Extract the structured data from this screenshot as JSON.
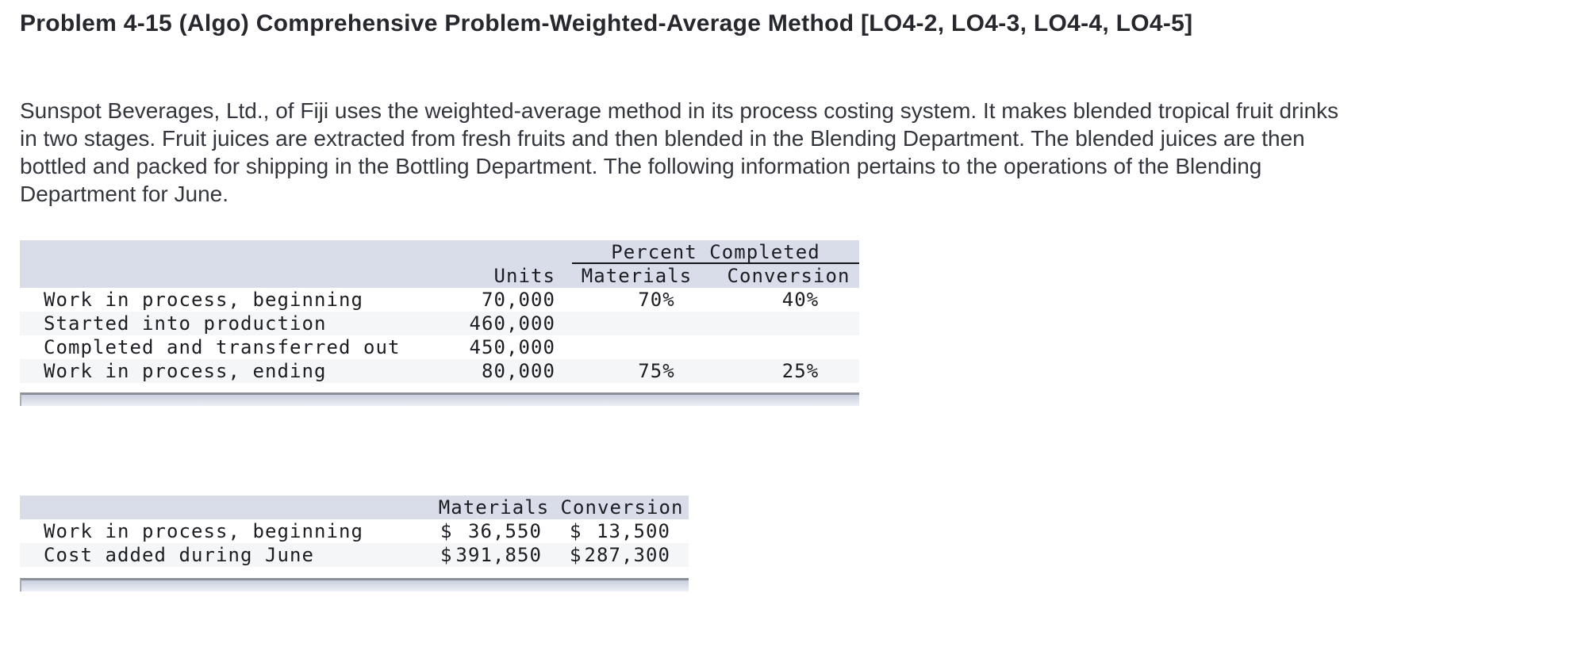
{
  "page": {
    "title": "Problem 4-15 (Algo) Comprehensive Problem-Weighted-Average Method [LO4-2, LO4-3, LO4-4, LO4-5]",
    "intro": "Sunspot Beverages, Ltd., of Fiji uses the weighted-average method in its process costing system. It makes blended tropical fruit drinks\nin two stages. Fruit juices are extracted from fresh fruits and then blended in the Blending Department. The blended juices are then\nbottled and packed for shipping in the Bottling Department. The following information pertains to the operations of the Blending\nDepartment for June."
  },
  "units_table": {
    "group_header": "Percent Completed",
    "col_units": "Units",
    "col_materials": "Materials",
    "col_conversion": "Conversion",
    "rows": [
      {
        "label": "Work in process, beginning",
        "units": "70,000",
        "materials": "70%",
        "conversion": "40%"
      },
      {
        "label": "Started into production",
        "units": "460,000",
        "materials": "",
        "conversion": ""
      },
      {
        "label": "Completed and transferred out",
        "units": "450,000",
        "materials": "",
        "conversion": ""
      },
      {
        "label": "Work in process, ending",
        "units": "80,000",
        "materials": "75%",
        "conversion": "25%"
      }
    ]
  },
  "cost_table": {
    "col_materials": "Materials",
    "col_conversion": "Conversion",
    "currency": "$",
    "rows": [
      {
        "label": "Work in process, beginning",
        "materials": "36,550",
        "conversion": "13,500"
      },
      {
        "label": "Cost added during June",
        "materials": "391,850",
        "conversion": "287,300"
      }
    ]
  },
  "colors": {
    "table_header_bg": "#d9dde9",
    "row_stripe_bg": "#f5f6f8",
    "scrollbar_track": "#cdd3e0",
    "scrollbar_border": "#8b8f9a"
  }
}
